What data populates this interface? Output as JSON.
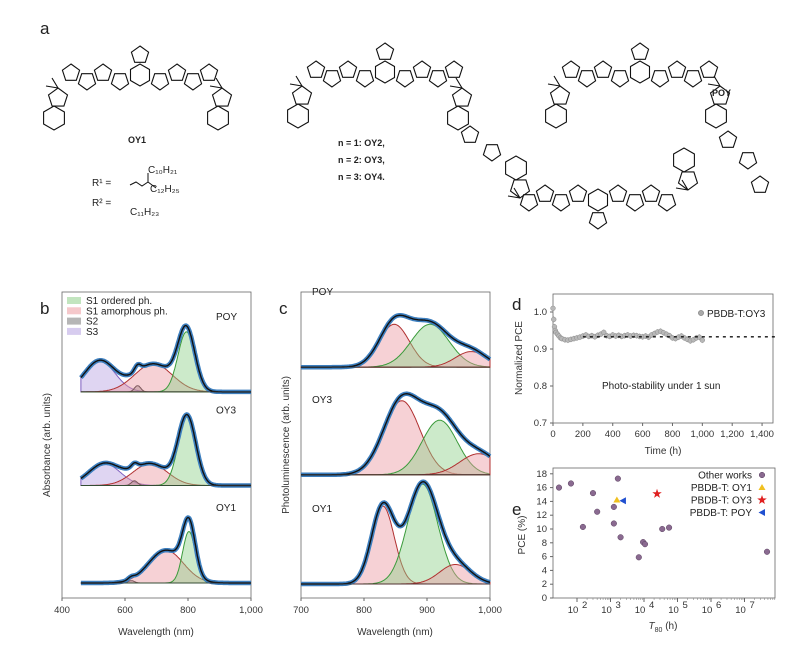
{
  "panel_labels": {
    "a": "a",
    "b": "b",
    "c": "c",
    "d": "d",
    "e": "e"
  },
  "structures": {
    "oy1_name": "OY1",
    "series_names": [
      "n = 1: OY2,",
      "n = 2: OY3,",
      "n = 3: OY4."
    ],
    "poy_name": "POY",
    "r1_label": "R¹ =",
    "r1_chain_a": "C₁₀H₂₁",
    "r1_chain_b": "C₁₂H₂₅",
    "r2_label": "R² =",
    "r2_chain": "C₁₁H₂₃"
  },
  "colors": {
    "ordered": "#8fd08a",
    "amorphous": "#ec9aa1",
    "s2": "#7a7a7a",
    "s3": "#b7a2e2",
    "data": "#3d7fbf",
    "fit": "#111111",
    "oy1": "#f0c020",
    "oy3": "#e02020",
    "poy": "#2050d0",
    "other": "#8a6a90"
  },
  "chart_data": [
    {
      "id": "b",
      "type": "area",
      "xlabel": "Wavelength (nm)",
      "ylabel": "Absorbance (arb. units)",
      "xlim": [
        400,
        1000
      ],
      "xticks": [
        "400",
        "600",
        "800",
        "1,000"
      ],
      "xtick_values": [
        400,
        600,
        800,
        1000
      ],
      "legend": [
        "S1 ordered ph.",
        "S1 amorphous ph.",
        "S2",
        "S3"
      ],
      "legend_position": "top-left",
      "samples": [
        {
          "name": "POY",
          "offset": 2.45,
          "components": [
            {
              "kind": "s3",
              "center": 520,
              "sigma": 48,
              "amp": 0.4
            },
            {
              "kind": "s2",
              "center": 640,
              "sigma": 10,
              "amp": 0.08
            },
            {
              "kind": "amorphous",
              "center": 690,
              "sigma": 60,
              "amp": 0.36
            },
            {
              "kind": "ordered",
              "center": 795,
              "sigma": 27,
              "amp": 0.77
            }
          ]
        },
        {
          "name": "OY3",
          "offset": 1.25,
          "components": [
            {
              "kind": "s3",
              "center": 535,
              "sigma": 50,
              "amp": 0.28
            },
            {
              "kind": "s2",
              "center": 630,
              "sigma": 10,
              "amp": 0.06
            },
            {
              "kind": "amorphous",
              "center": 680,
              "sigma": 55,
              "amp": 0.28
            },
            {
              "kind": "ordered",
              "center": 797,
              "sigma": 28,
              "amp": 0.88
            }
          ]
        },
        {
          "name": "OY1",
          "offset": 0,
          "components": [
            {
              "kind": "s2",
              "center": 620,
              "sigma": 10,
              "amp": 0.03
            },
            {
              "kind": "amorphous",
              "center": 730,
              "sigma": 55,
              "amp": 0.42
            },
            {
              "kind": "ordered",
              "center": 803,
              "sigma": 20,
              "amp": 0.66
            }
          ]
        }
      ]
    },
    {
      "id": "c",
      "type": "area",
      "xlabel": "Wavelength (nm)",
      "ylabel": "Photoluminescence (arb. units)",
      "xlim": [
        700,
        1000
      ],
      "xticks": [
        "700",
        "800",
        "900",
        "1,000"
      ],
      "xtick_values": [
        700,
        800,
        900,
        1000
      ],
      "samples": [
        {
          "name": "POY",
          "offset": 2.78,
          "components": [
            {
              "kind": "amorphous",
              "center": 848,
              "sigma": 24,
              "amp": 0.55
            },
            {
              "kind": "ordered",
              "center": 905,
              "sigma": 30,
              "amp": 0.55
            },
            {
              "kind": "amorphous",
              "center": 970,
              "sigma": 25,
              "amp": 0.2
            }
          ]
        },
        {
          "name": "OY3",
          "offset": 1.4,
          "components": [
            {
              "kind": "amorphous",
              "center": 860,
              "sigma": 29,
              "amp": 0.95
            },
            {
              "kind": "ordered",
              "center": 920,
              "sigma": 28,
              "amp": 0.7
            },
            {
              "kind": "amorphous",
              "center": 982,
              "sigma": 30,
              "amp": 0.27
            }
          ]
        },
        {
          "name": "OY1",
          "offset": 0,
          "components": [
            {
              "kind": "amorphous",
              "center": 830,
              "sigma": 18,
              "amp": 1.0
            },
            {
              "kind": "ordered",
              "center": 893,
              "sigma": 24,
              "amp": 1.28
            },
            {
              "kind": "amorphous",
              "center": 945,
              "sigma": 25,
              "amp": 0.25
            }
          ]
        }
      ]
    },
    {
      "id": "d",
      "type": "scatter",
      "xlabel": "Time (h)",
      "ylabel": "Normalized PCE",
      "xlim": [
        0,
        1500
      ],
      "ylim": [
        0.7,
        1.05
      ],
      "xticks": [
        "0",
        "200",
        "400",
        "600",
        "800",
        "1,000",
        "1,200",
        "1,400"
      ],
      "xtick_values": [
        0,
        200,
        400,
        600,
        800,
        1000,
        1200,
        1400
      ],
      "yticks": [
        "0.7",
        "0.8",
        "0.9",
        "1.0"
      ],
      "ytick_values": [
        0.7,
        0.8,
        0.9,
        1.0
      ],
      "legend": "PBDB-T:OY3",
      "legend_position": "top-right",
      "annotation": "Photo-stability under 1 sun",
      "fit_level": 0.933,
      "fit_range": [
        200,
        1500
      ],
      "x": [
        0,
        5,
        10,
        15,
        20,
        30,
        40,
        50,
        60,
        80,
        100,
        120,
        140,
        160,
        180,
        200,
        220,
        240,
        260,
        280,
        300,
        320,
        340,
        360,
        380,
        400,
        420,
        440,
        460,
        480,
        500,
        520,
        540,
        560,
        580,
        600,
        620,
        640,
        660,
        680,
        700,
        720,
        740,
        760,
        780,
        800,
        820,
        840,
        860,
        880,
        900,
        920,
        940,
        960,
        980,
        1000
      ],
      "y": [
        1.01,
        0.98,
        0.96,
        0.95,
        0.945,
        0.94,
        0.935,
        0.93,
        0.928,
        0.925,
        0.924,
        0.926,
        0.928,
        0.93,
        0.932,
        0.935,
        0.938,
        0.934,
        0.936,
        0.933,
        0.937,
        0.94,
        0.945,
        0.936,
        0.934,
        0.938,
        0.935,
        0.937,
        0.934,
        0.936,
        0.938,
        0.935,
        0.937,
        0.936,
        0.934,
        0.933,
        0.935,
        0.932,
        0.938,
        0.942,
        0.946,
        0.948,
        0.944,
        0.94,
        0.936,
        0.93,
        0.928,
        0.932,
        0.935,
        0.93,
        0.926,
        0.922,
        0.925,
        0.93,
        0.932,
        0.924
      ]
    },
    {
      "id": "e",
      "type": "scatter",
      "xlabel": "T80 (h)",
      "xlabel_main": "T",
      "xlabel_sub": "80",
      "xlabel_unit": " (h)",
      "ylabel": "PCE (%)",
      "xscale": "log",
      "xlim": [
        19,
        100000000
      ],
      "ylim": [
        0,
        18.5
      ],
      "xticks_exp": [
        "2",
        "3",
        "4",
        "5",
        "6",
        "7"
      ],
      "yticks": [
        "0",
        "2",
        "4",
        "6",
        "8",
        "10",
        "12",
        "14",
        "16",
        "18"
      ],
      "legend_position": "top-right",
      "series": [
        {
          "name": "Other works",
          "marker": "circle",
          "color_key": "other",
          "x": [
            29,
            66,
            300,
            1660,
            150,
            400,
            1260,
            1260,
            2000,
            7000,
            9400,
            10700,
            35000,
            56000,
            47000000
          ],
          "y": [
            16.0,
            16.6,
            15.2,
            17.3,
            10.3,
            12.5,
            13.2,
            10.8,
            8.8,
            5.9,
            8.1,
            7.8,
            10.0,
            10.2,
            6.7
          ]
        },
        {
          "name": "PBDB-T:  OY1",
          "marker": "triangle-up",
          "color_key": "oy1",
          "x": [
            1550
          ],
          "y": [
            14.2
          ]
        },
        {
          "name": "PBDB-T:  OY3",
          "marker": "star",
          "color_key": "oy3",
          "x": [
            24500
          ],
          "y": [
            15.1
          ]
        },
        {
          "name": "PBDB-T: POY",
          "marker": "triangle-left",
          "color_key": "poy",
          "x": [
            2350
          ],
          "y": [
            14.1
          ]
        }
      ]
    }
  ]
}
